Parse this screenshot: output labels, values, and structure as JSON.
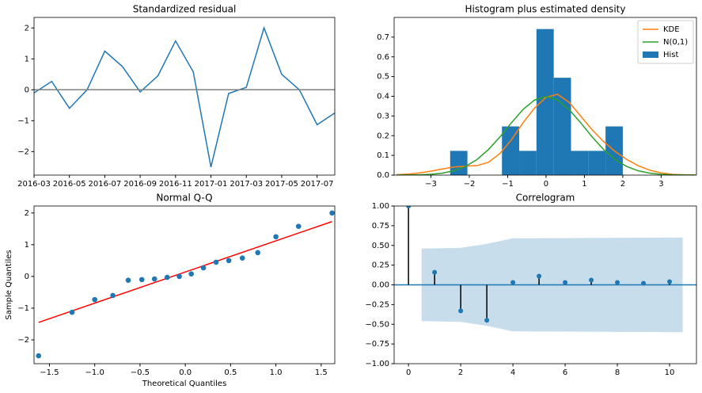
{
  "chart_data": [
    {
      "type": "line",
      "title": "Standardized residual",
      "x": [
        "2016-03",
        "2016-04",
        "2016-05",
        "2016-06",
        "2016-07",
        "2016-08",
        "2016-09",
        "2016-10",
        "2016-11",
        "2016-12",
        "2017-01",
        "2017-02",
        "2017-03",
        "2017-04",
        "2017-05",
        "2017-06",
        "2017-07",
        "2017-08"
      ],
      "series": [
        {
          "color": "#1f77b4",
          "values": [
            -0.1,
            0.27,
            -0.6,
            0.0,
            1.25,
            0.75,
            -0.07,
            0.45,
            1.58,
            0.58,
            -2.5,
            -0.12,
            0.08,
            2.0,
            0.5,
            0.0,
            -1.13,
            -0.75
          ]
        }
      ],
      "hline": 0,
      "hline_color": "#808080",
      "xlim": [
        "2016-03",
        "2017-08"
      ],
      "xticks": [
        "2016-03",
        "2016-05",
        "2016-07",
        "2016-09",
        "2016-11",
        "2017-01",
        "2017-03",
        "2017-05",
        "2017-07"
      ],
      "ylim": [
        -2.76,
        2.34
      ],
      "yticks": [
        {
          "value": -2,
          "label": "−2"
        },
        {
          "value": -1,
          "label": "−1"
        },
        0,
        1,
        2
      ]
    },
    {
      "type": "histogram",
      "title": "Histogram plus estimated density",
      "hist": {
        "name": "Hist",
        "color": "#1f77b4",
        "bins": [
          -2.5,
          -2.05,
          -1.6,
          -1.15,
          -0.7,
          -0.25,
          0.2,
          0.65,
          1.1,
          1.55,
          2.0
        ],
        "values": [
          0.123,
          0,
          0,
          0.247,
          0.123,
          0.741,
          0.494,
          0.123,
          0.123,
          0.247
        ]
      },
      "x": [
        -3.9,
        -3.6,
        -3.3,
        -3.0,
        -2.7,
        -2.4,
        -2.1,
        -1.8,
        -1.5,
        -1.2,
        -0.9,
        -0.6,
        -0.3,
        0,
        0.3,
        0.6,
        0.9,
        1.2,
        1.5,
        1.8,
        2.1,
        2.4,
        2.7,
        3.0,
        3.3,
        3.6,
        3.9
      ],
      "series": [
        {
          "name": "KDE",
          "color": "#ff7f0e",
          "values": [
            0.002,
            0.005,
            0.011,
            0.02,
            0.031,
            0.041,
            0.045,
            0.048,
            0.065,
            0.11,
            0.18,
            0.265,
            0.34,
            0.395,
            0.41,
            0.37,
            0.3,
            0.23,
            0.17,
            0.12,
            0.08,
            0.048,
            0.025,
            0.011,
            0.004,
            0.0015,
            0.0005
          ]
        },
        {
          "name": "N(0,1)",
          "color": "#2ca02c",
          "values": [
            0.0002,
            0.0006,
            0.0017,
            0.004,
            0.01,
            0.022,
            0.044,
            0.079,
            0.13,
            0.194,
            0.266,
            0.333,
            0.381,
            0.399,
            0.381,
            0.333,
            0.266,
            0.194,
            0.13,
            0.079,
            0.044,
            0.022,
            0.01,
            0.004,
            0.0017,
            0.0006,
            0.0002
          ]
        }
      ],
      "legend": "upper right",
      "xlim": [
        -3.96,
        3.92
      ],
      "xticks": [
        {
          "value": -3,
          "label": "−3"
        },
        {
          "value": -2,
          "label": "−2"
        },
        {
          "value": -1,
          "label": "−1"
        },
        0,
        1,
        2,
        3
      ],
      "ylim": [
        0,
        0.8
      ],
      "yticks": [
        {
          "value": 0,
          "label": "0.0"
        },
        0.1,
        0.2,
        0.3,
        0.4,
        0.5,
        0.6,
        0.7
      ]
    },
    {
      "type": "scatter",
      "title": "Normal Q-Q",
      "x_label": "Theoretical Quantiles",
      "y_label": "Sample Quantiles",
      "x": [
        -1.62,
        -1.25,
        -1.0,
        -0.8,
        -0.63,
        -0.48,
        -0.34,
        -0.2,
        -0.066,
        0.066,
        0.2,
        0.34,
        0.48,
        0.63,
        0.8,
        1.0,
        1.25,
        1.62
      ],
      "values": [
        -2.5,
        -1.13,
        -0.73,
        -0.6,
        -0.12,
        -0.1,
        -0.08,
        -0.03,
        0.0,
        0.08,
        0.27,
        0.45,
        0.5,
        0.58,
        0.75,
        1.25,
        1.58,
        2.0
      ],
      "color": "#1f77b4",
      "fit_line": {
        "color": "#ff0000",
        "x": [
          -1.62,
          1.62
        ],
        "values": [
          -1.45,
          1.73
        ]
      },
      "xlim": [
        -1.67,
        1.65
      ],
      "xticks": [
        {
          "value": -1.5,
          "label": "−1.5"
        },
        {
          "value": -1,
          "label": "−1.0"
        },
        {
          "value": -0.5,
          "label": "−0.5"
        },
        {
          "value": 0,
          "label": "0.0"
        },
        0.5,
        {
          "value": 1,
          "label": "1.0"
        },
        1.5
      ],
      "ylim": [
        -2.75,
        2.22
      ],
      "yticks": [
        {
          "value": -2,
          "label": "−2"
        },
        {
          "value": -1,
          "label": "−1"
        },
        0,
        1,
        2
      ]
    },
    {
      "type": "stem",
      "title": "Correlogram",
      "x": [
        0,
        1,
        2,
        3,
        4,
        5,
        6,
        7,
        8,
        9,
        10
      ],
      "values": [
        1.0,
        0.16,
        -0.33,
        -0.45,
        0.03,
        0.11,
        0.03,
        0.06,
        0.03,
        0.02,
        0.04
      ],
      "color": "#1f77b4",
      "stem_color": "#000000",
      "hline": 0,
      "hline_color": "#1f77b4",
      "band": {
        "color": "#c7ddec",
        "x": [
          0.5,
          2,
          3,
          4,
          10.5
        ],
        "upper": [
          0.46,
          0.47,
          0.52,
          0.59,
          0.6
        ],
        "lower": [
          -0.46,
          -0.47,
          -0.52,
          -0.59,
          -0.6
        ]
      },
      "xlim": [
        -0.55,
        11.03
      ],
      "xticks": [
        0,
        2,
        4,
        6,
        8,
        10
      ],
      "ylim": [
        -1,
        1
      ],
      "yticks": [
        {
          "value": -1,
          "label": "−1.00"
        },
        {
          "value": -0.75,
          "label": "−0.75"
        },
        {
          "value": -0.5,
          "label": "−0.50"
        },
        {
          "value": -0.25,
          "label": "−0.25"
        },
        {
          "value": 0,
          "label": "0.00"
        },
        0.25,
        {
          "value": 0.5,
          "label": "0.50"
        },
        0.75,
        {
          "value": 1,
          "label": "1.00"
        }
      ]
    }
  ]
}
